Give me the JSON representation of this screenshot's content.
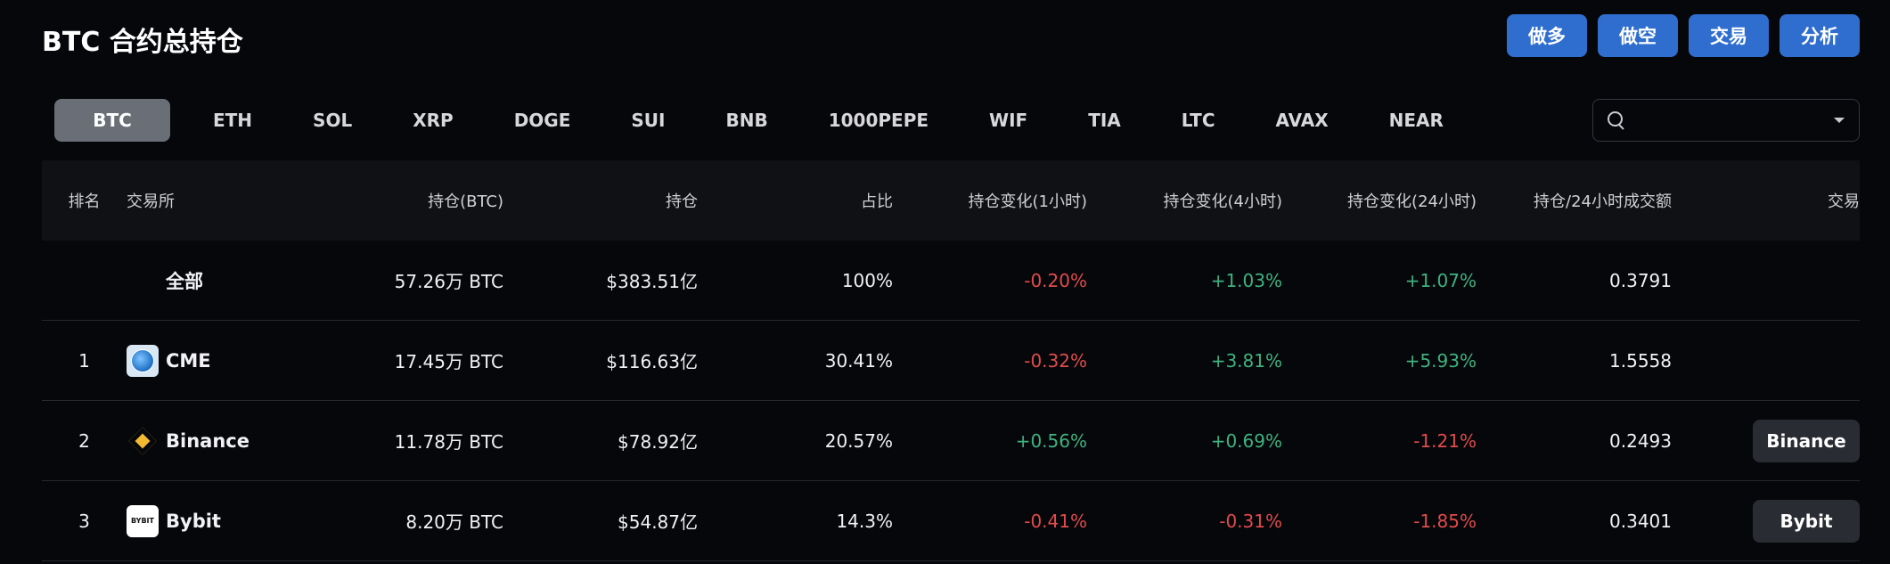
{
  "header": {
    "title": "BTC 合约总持仓",
    "actions": [
      "做多",
      "做空",
      "交易",
      "分析"
    ]
  },
  "tabs": [
    "BTC",
    "ETH",
    "SOL",
    "XRP",
    "DOGE",
    "SUI",
    "BNB",
    "1000PEPE",
    "WIF",
    "TIA",
    "LTC",
    "AVAX",
    "NEAR"
  ],
  "active_tab": "BTC",
  "search": {
    "value": "",
    "placeholder": ""
  },
  "table": {
    "columns": {
      "rank": "排名",
      "exchange": "交易所",
      "oi_btc": "持仓(BTC)",
      "oi_usd": "持仓",
      "share": "占比",
      "change_1h": "持仓变化(1小时)",
      "change_4h": "持仓变化(4小时)",
      "change_24h": "持仓变化(24小时)",
      "oi_vol_ratio": "持仓/24小时成交额",
      "trade": "交易"
    },
    "total": {
      "label": "全部",
      "oi_btc": "57.26万 BTC",
      "oi_usd": "$383.51亿",
      "share": "100%",
      "change_1h": "-0.20%",
      "change_4h": "+1.03%",
      "change_24h": "+1.07%",
      "oi_vol_ratio": "0.3791"
    },
    "rows": [
      {
        "rank": "1",
        "exchange": "CME",
        "logo": "cme-globe-icon",
        "oi_btc": "17.45万 BTC",
        "oi_usd": "$116.63亿",
        "share": "30.41%",
        "change_1h": "-0.32%",
        "change_4h": "+3.81%",
        "change_24h": "+5.93%",
        "oi_vol_ratio": "1.5558",
        "trade": ""
      },
      {
        "rank": "2",
        "exchange": "Binance",
        "logo": "binance-icon",
        "oi_btc": "11.78万 BTC",
        "oi_usd": "$78.92亿",
        "share": "20.57%",
        "change_1h": "+0.56%",
        "change_4h": "+0.69%",
        "change_24h": "-1.21%",
        "oi_vol_ratio": "0.2493",
        "trade": "Binance"
      },
      {
        "rank": "3",
        "exchange": "Bybit",
        "logo": "bybit-icon",
        "logo_text": "BYBIT",
        "oi_btc": "8.20万 BTC",
        "oi_usd": "$54.87亿",
        "share": "14.3%",
        "change_1h": "-0.41%",
        "change_4h": "-0.31%",
        "change_24h": "-1.85%",
        "oi_vol_ratio": "0.3401",
        "trade": "Bybit"
      }
    ]
  },
  "colors": {
    "accent": "#2f6ecf",
    "negative": "#e04b4b",
    "positive": "#3fb27f"
  }
}
